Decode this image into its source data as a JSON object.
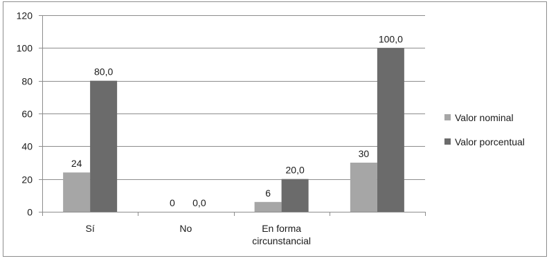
{
  "chart_data": {
    "type": "bar",
    "title": "",
    "xlabel": "",
    "ylabel": "",
    "categories": [
      [
        "Sí"
      ],
      [
        "No"
      ],
      [
        "En forma",
        "circunstancial"
      ],
      [
        ""
      ]
    ],
    "series": [
      {
        "name": "Valor nominal",
        "color": "#a6a6a6",
        "values": [
          24,
          0,
          6,
          30
        ],
        "labels": [
          "24",
          "0",
          "6",
          "30"
        ]
      },
      {
        "name": "Valor porcentual",
        "color": "#6b6b6b",
        "values": [
          80,
          0,
          20,
          100
        ],
        "labels": [
          "80,0",
          "0,0",
          "20,0",
          "100,0"
        ]
      }
    ],
    "yticks": [
      "0",
      "20",
      "40",
      "60",
      "80",
      "100",
      "120"
    ],
    "ylim": [
      0,
      120
    ],
    "ytick_step": 20,
    "grid": true,
    "legend_position": "right"
  }
}
